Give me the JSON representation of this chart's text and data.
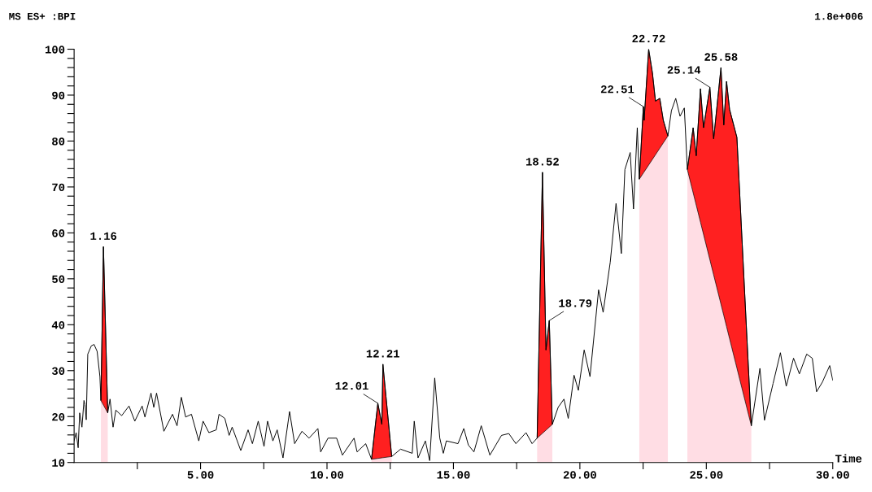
{
  "chart_data": {
    "type": "line",
    "xlabel": "Time",
    "annotations": [
      "MS ES+ :BPI",
      "1.8e+006",
      {
        "text": "1.16",
        "x": 1.16,
        "y": 57.0
      },
      {
        "text": "12.01",
        "x": 12.01,
        "y": 22.9
      },
      {
        "text": "12.21",
        "x": 12.21,
        "y": 31.4
      },
      {
        "text": "18.52",
        "x": 18.52,
        "y": 73.2
      },
      {
        "text": "18.79",
        "x": 18.79,
        "y": 40.9
      },
      {
        "text": "22.51",
        "x": 22.51,
        "y": 87.5
      },
      {
        "text": "22.72",
        "x": 22.72,
        "y": 100
      },
      {
        "text": "25.14",
        "x": 25.14,
        "y": 91.7
      },
      {
        "text": "25.58",
        "x": 25.58,
        "y": 96.0
      }
    ],
    "xlim": [
      0,
      30
    ],
    "ylim": [
      10,
      100
    ],
    "xticks": [
      {
        "value": 2.5,
        "label": null
      },
      {
        "value": 5,
        "label": "5.00"
      },
      {
        "value": 7.5,
        "label": null
      },
      {
        "value": 10,
        "label": "10.00"
      },
      {
        "value": 12.5,
        "label": null
      },
      {
        "value": 15,
        "label": "15.00"
      },
      {
        "value": 17.5,
        "label": null
      },
      {
        "value": 20,
        "label": "20.00"
      },
      {
        "value": 22.5,
        "label": null
      },
      {
        "value": 25,
        "label": "25.00"
      },
      {
        "value": 27.5,
        "label": null
      },
      {
        "value": 30,
        "label": "30.00"
      }
    ],
    "yticks": [
      10,
      {
        "value": 12,
        "label": null
      },
      {
        "value": 14,
        "label": null
      },
      {
        "value": 16,
        "label": null
      },
      {
        "value": 18,
        "label": null
      },
      20,
      {
        "value": 22,
        "label": null
      },
      {
        "value": 24,
        "label": null
      },
      {
        "value": 26,
        "label": null
      },
      {
        "value": 28,
        "label": null
      },
      30,
      {
        "value": 32,
        "label": null
      },
      {
        "value": 34,
        "label": null
      },
      {
        "value": 36,
        "label": null
      },
      {
        "value": 38,
        "label": null
      },
      40,
      {
        "value": 42,
        "label": null
      },
      {
        "value": 44,
        "label": null
      },
      {
        "value": 46,
        "label": null
      },
      {
        "value": 48,
        "label": null
      },
      50,
      {
        "value": 52,
        "label": null
      },
      {
        "value": 54,
        "label": null
      },
      {
        "value": 56,
        "label": null
      },
      {
        "value": 58,
        "label": null
      },
      60,
      {
        "value": 62,
        "label": null
      },
      {
        "value": 64,
        "label": null
      },
      {
        "value": 66,
        "label": null
      },
      {
        "value": 68,
        "label": null
      },
      70,
      {
        "value": 72,
        "label": null
      },
      {
        "value": 74,
        "label": null
      },
      {
        "value": 76,
        "label": null
      },
      {
        "value": 78,
        "label": null
      },
      80,
      {
        "value": 82,
        "label": null
      },
      {
        "value": 84,
        "label": null
      },
      {
        "value": 86,
        "label": null
      },
      {
        "value": 88,
        "label": null
      },
      90,
      {
        "value": 92,
        "label": null
      },
      {
        "value": 94,
        "label": null
      },
      {
        "value": 96,
        "label": null
      },
      {
        "value": 98,
        "label": null
      },
      100
    ],
    "grid": false,
    "legend": false,
    "marker": "none",
    "line_style": "solid",
    "series": [
      {
        "type": "area",
        "color": "#ffdde4",
        "x": [
          1.06,
          1.33
        ],
        "values": [
          23.5,
          20.8
        ]
      },
      {
        "type": "area",
        "color": "#ffdde4",
        "x": [
          11.76,
          12.56
        ],
        "values": [
          10.7,
          11.3
        ]
      },
      {
        "type": "area",
        "color": "#ffdde4",
        "x": [
          18.31,
          18.91
        ],
        "values": [
          15.3,
          18.3
        ]
      },
      {
        "type": "area",
        "color": "#ffdde4",
        "x": [
          22.35,
          23.48
        ],
        "values": [
          71.7,
          81.1
        ]
      },
      {
        "type": "area",
        "color": "#ffdde4",
        "x": [
          24.25,
          26.78
        ],
        "values": [
          73.8,
          18.0
        ]
      },
      {
        "type": "area",
        "color": "#ff2020",
        "x": [
          1.06,
          1.16,
          1.33
        ],
        "values": [
          23.5,
          57.0,
          20.8
        ]
      },
      {
        "type": "area",
        "color": "#ff2020",
        "x": [
          11.76,
          12.01,
          12.17,
          12.21,
          12.56
        ],
        "values": [
          10.7,
          22.9,
          18.3,
          31.4,
          11.3
        ]
      },
      {
        "type": "area",
        "color": "#ff2020",
        "x": [
          18.31,
          18.52,
          18.66,
          18.79,
          18.91
        ],
        "values": [
          15.3,
          73.2,
          34.5,
          40.9,
          18.3
        ]
      },
      {
        "type": "area",
        "color": "#ff2020",
        "x": [
          22.35,
          22.51,
          22.54,
          22.72,
          22.87,
          22.99,
          23.16,
          23.3,
          23.48
        ],
        "values": [
          71.7,
          87.5,
          84.5,
          100,
          94.8,
          88.7,
          89.3,
          84.5,
          81.1
        ]
      },
      {
        "type": "area",
        "color": "#ff2020",
        "x": [
          24.25,
          24.48,
          24.6,
          24.77,
          24.89,
          25.14,
          25.29,
          25.58,
          25.69,
          25.8,
          25.92,
          26.21,
          26.78
        ],
        "values": [
          73.8,
          82.9,
          76.8,
          91.4,
          82.9,
          91.7,
          80.5,
          96.0,
          83.5,
          93.0,
          86.9,
          80.8,
          18.0
        ]
      },
      {
        "color": "#000000",
        "x": [
          0,
          0.08,
          0.16,
          0.22,
          0.31,
          0.39,
          0.43,
          0.48,
          0.54,
          0.68,
          0.79,
          0.91,
          1.02,
          1.06,
          1.16,
          1.33,
          1.42,
          1.54,
          1.65,
          1.88,
          2.17,
          2.4,
          2.69,
          2.8,
          3.04,
          3.15,
          3.26,
          3.55,
          3.89,
          4.07,
          4.24,
          4.41,
          4.64,
          4.93,
          5.1,
          5.33,
          5.62,
          5.73,
          5.96,
          6.13,
          6.25,
          6.59,
          6.88,
          7.05,
          7.28,
          7.51,
          7.65,
          7.86,
          8.03,
          8.26,
          8.52,
          8.72,
          9.01,
          9.29,
          9.64,
          9.75,
          10.04,
          10.38,
          10.61,
          11.07,
          11.19,
          11.53,
          11.76,
          12.01,
          12.17,
          12.21,
          12.56,
          12.91,
          13.37,
          13.45,
          13.6,
          13.89,
          14.06,
          14.26,
          14.46,
          14.6,
          14.72,
          15.18,
          15.41,
          15.59,
          15.81,
          16.1,
          16.44,
          16.9,
          17.19,
          17.47,
          17.87,
          18.11,
          18.31,
          18.52,
          18.66,
          18.79,
          18.91,
          19.14,
          19.37,
          19.54,
          19.77,
          19.94,
          20.17,
          20.4,
          20.74,
          20.92,
          21.2,
          21.43,
          21.64,
          21.78,
          21.99,
          22.12,
          22.27,
          22.35,
          22.51,
          22.54,
          22.72,
          22.87,
          22.99,
          23.16,
          23.3,
          23.48,
          23.62,
          23.79,
          23.96,
          24.13,
          24.25,
          24.48,
          24.6,
          24.77,
          24.89,
          25.14,
          25.29,
          25.58,
          25.69,
          25.8,
          25.92,
          26.21,
          26.78,
          27.12,
          27.3,
          27.64,
          27.93,
          28.16,
          28.45,
          28.68,
          28.97,
          29.19,
          29.36,
          29.59,
          29.88,
          30.0
        ],
        "values": [
          14.7,
          16.5,
          13.2,
          20.8,
          17.7,
          23.5,
          22.6,
          19.3,
          33.6,
          35.4,
          35.7,
          34.2,
          28.7,
          23.5,
          57.0,
          20.8,
          23.8,
          17.7,
          21.4,
          20.2,
          22.3,
          19.0,
          22.3,
          19.9,
          25.1,
          22.0,
          25.1,
          16.8,
          20.5,
          18.0,
          24.2,
          19.9,
          20.5,
          14.7,
          19.0,
          16.5,
          17.1,
          20.5,
          19.6,
          15.9,
          17.7,
          12.6,
          17.1,
          14.1,
          19.0,
          13.5,
          19.0,
          14.7,
          17.1,
          11.0,
          21.1,
          14.1,
          16.8,
          15.3,
          17.4,
          12.3,
          15.3,
          15.3,
          11.6,
          15.3,
          12.3,
          14.1,
          10.7,
          22.9,
          18.3,
          31.4,
          11.3,
          12.9,
          12.0,
          19.0,
          11.0,
          14.7,
          10.4,
          28.4,
          15.3,
          12.0,
          14.7,
          14.1,
          17.4,
          13.8,
          12.3,
          18.0,
          11.6,
          15.9,
          16.3,
          14.1,
          16.5,
          14.1,
          15.3,
          73.2,
          34.5,
          40.9,
          18.3,
          22.0,
          23.8,
          19.6,
          29.0,
          25.7,
          34.5,
          28.7,
          47.6,
          42.7,
          53.6,
          66.4,
          55.5,
          73.8,
          77.5,
          65.2,
          82.9,
          71.7,
          87.5,
          84.5,
          100,
          94.8,
          88.7,
          89.3,
          84.5,
          81.1,
          86.6,
          89.3,
          85.4,
          87.2,
          73.8,
          82.9,
          76.8,
          91.4,
          82.9,
          91.7,
          80.5,
          96.0,
          83.5,
          93.0,
          86.9,
          80.8,
          18.0,
          30.5,
          19.2,
          27.2,
          33.9,
          26.6,
          32.7,
          29.3,
          33.6,
          32.7,
          25.4,
          27.5,
          31.1,
          27.9
        ]
      }
    ]
  }
}
